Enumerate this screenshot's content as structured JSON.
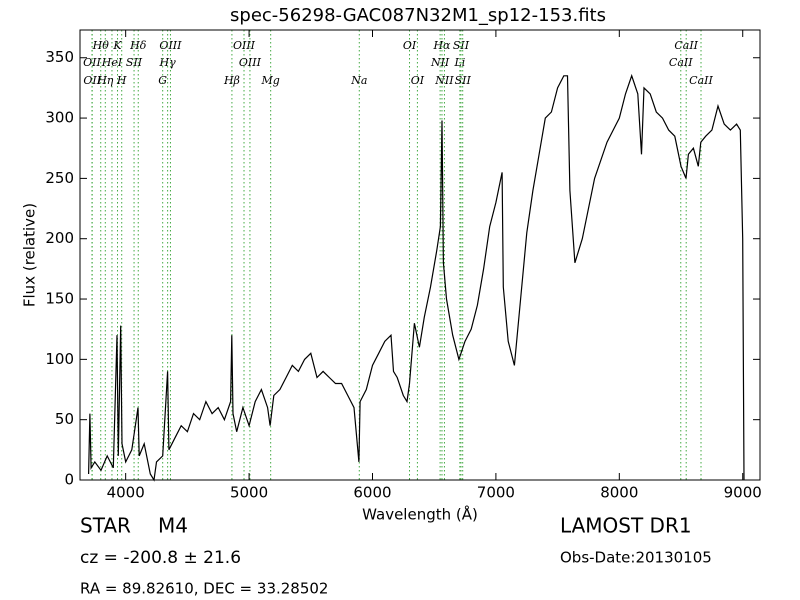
{
  "chart_data": {
    "type": "line",
    "title": "spec-56298-GAC087N32M1_sp12-153.fits",
    "xlabel": "Wavelength (Å)",
    "ylabel": "Flux (relative)",
    "xlim": [
      3630,
      9140
    ],
    "ylim": [
      0,
      373
    ],
    "xticks": [
      4000,
      5000,
      6000,
      7000,
      8000,
      9000
    ],
    "yticks": [
      0,
      50,
      100,
      150,
      200,
      250,
      300,
      350
    ],
    "x": [
      3700,
      3710,
      3720,
      3750,
      3800,
      3850,
      3900,
      3930,
      3940,
      3960,
      3970,
      4000,
      4050,
      4100,
      4110,
      4150,
      4200,
      4230,
      4250,
      4300,
      4340,
      4350,
      4400,
      4450,
      4500,
      4550,
      4600,
      4650,
      4700,
      4750,
      4800,
      4850,
      4860,
      4870,
      4900,
      4950,
      5000,
      5050,
      5100,
      5150,
      5170,
      5200,
      5250,
      5300,
      5350,
      5400,
      5450,
      5500,
      5550,
      5600,
      5650,
      5700,
      5750,
      5800,
      5850,
      5890,
      5900,
      5950,
      6000,
      6050,
      6100,
      6150,
      6170,
      6200,
      6250,
      6280,
      6300,
      6340,
      6380,
      6420,
      6470,
      6520,
      6550,
      6563,
      6575,
      6600,
      6650,
      6700,
      6750,
      6800,
      6850,
      6900,
      6950,
      7000,
      7050,
      7060,
      7100,
      7150,
      7200,
      7250,
      7300,
      7350,
      7400,
      7450,
      7500,
      7550,
      7580,
      7600,
      7640,
      7700,
      7800,
      7900,
      8000,
      8050,
      8100,
      8150,
      8180,
      8200,
      8250,
      8300,
      8350,
      8400,
      8450,
      8500,
      8540,
      8560,
      8600,
      8640,
      8660,
      8700,
      8750,
      8800,
      8850,
      8900,
      8950,
      8980,
      9000,
      9010
    ],
    "series": [
      {
        "color": "#000000",
        "values": [
          5,
          55,
          10,
          15,
          8,
          20,
          10,
          120,
          20,
          128,
          30,
          15,
          25,
          60,
          20,
          30,
          5,
          0,
          15,
          20,
          90,
          25,
          35,
          45,
          40,
          55,
          50,
          65,
          55,
          60,
          50,
          65,
          120,
          55,
          40,
          60,
          45,
          65,
          75,
          60,
          45,
          70,
          75,
          85,
          95,
          90,
          100,
          105,
          85,
          90,
          85,
          80,
          80,
          70,
          60,
          15,
          65,
          75,
          95,
          105,
          115,
          120,
          90,
          85,
          70,
          65,
          80,
          130,
          110,
          135,
          160,
          190,
          210,
          298,
          180,
          150,
          120,
          100,
          115,
          125,
          145,
          175,
          210,
          230,
          255,
          160,
          115,
          95,
          150,
          205,
          240,
          270,
          300,
          305,
          325,
          335,
          335,
          240,
          180,
          200,
          250,
          280,
          300,
          320,
          335,
          320,
          270,
          325,
          320,
          305,
          300,
          290,
          285,
          260,
          250,
          270,
          275,
          260,
          280,
          285,
          290,
          310,
          295,
          290,
          295,
          290,
          200,
          0
        ]
      }
    ],
    "line_color": "#44aa44",
    "lines_top": [
      {
        "label": "Hθ",
        "x": 3798
      },
      {
        "label": "K",
        "x": 3934
      },
      {
        "label": "Hδ",
        "x": 4102
      },
      {
        "label": "OIII",
        "x": 4363
      },
      {
        "label": "OIII",
        "x": 4959
      },
      {
        "label": "OI",
        "x": 6300
      },
      {
        "label": "Hα",
        "x": 6563
      },
      {
        "label": "SII",
        "x": 6717
      },
      {
        "label": "CaII",
        "x": 8542
      }
    ],
    "lines_mid": [
      {
        "label": "OII",
        "x": 3727
      },
      {
        "label": "HeI",
        "x": 3889
      },
      {
        "label": "SII",
        "x": 4068
      },
      {
        "label": "Hγ",
        "x": 4340
      },
      {
        "label": "OIII",
        "x": 5007
      },
      {
        "label": "NII",
        "x": 6548
      },
      {
        "label": "Li",
        "x": 6708
      },
      {
        "label": "CaII",
        "x": 8498
      }
    ],
    "lines_bottom": [
      {
        "label": "OII",
        "x": 3729
      },
      {
        "label": "Hη",
        "x": 3835
      },
      {
        "label": "H",
        "x": 3968
      },
      {
        "label": "G",
        "x": 4300
      },
      {
        "label": "Hβ",
        "x": 4861
      },
      {
        "label": "Mg",
        "x": 5175
      },
      {
        "label": "Na",
        "x": 5893
      },
      {
        "label": "OI",
        "x": 6364
      },
      {
        "label": "NII",
        "x": 6583
      },
      {
        "label": "SII",
        "x": 6731
      },
      {
        "label": "CaII",
        "x": 8662
      }
    ],
    "info": {
      "class": "STAR",
      "subclass": "M4",
      "cz": "cz = -200.8 ± 21.6",
      "radec": "RA = 89.82610, DEC = 33.28502",
      "survey": "LAMOST DR1",
      "date": "Obs-Date:20130105"
    }
  }
}
